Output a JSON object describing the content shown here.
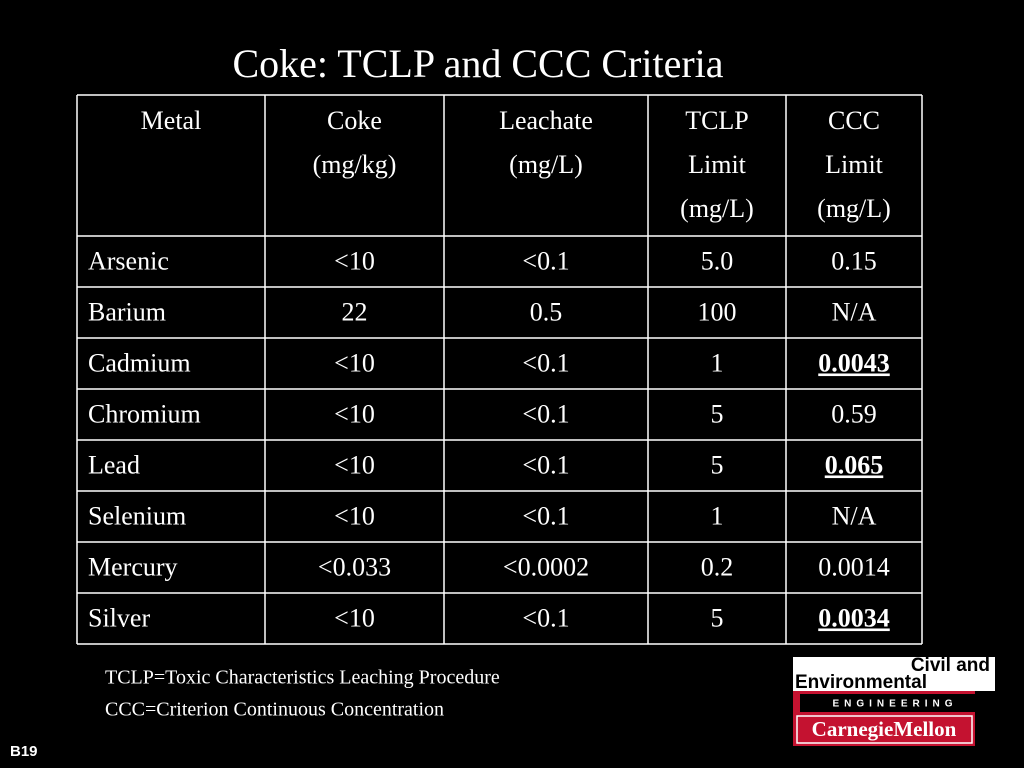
{
  "title": "Coke: TCLP and CCC Criteria",
  "table": {
    "header": [
      [
        "Metal"
      ],
      [
        "Coke",
        "(mg/kg)"
      ],
      [
        "Leachate",
        "(mg/L)"
      ],
      [
        "TCLP",
        "Limit",
        "(mg/L)"
      ],
      [
        "CCC",
        "Limit",
        "(mg/L)"
      ]
    ],
    "rows": [
      [
        "Arsenic",
        "<10",
        "<0.1",
        "5.0",
        "0.15"
      ],
      [
        "Barium",
        "22",
        "0.5",
        "100",
        "N/A"
      ],
      [
        "Cadmium",
        "<10",
        "<0.1",
        "1",
        {
          "text": "0.0043",
          "emphasis": true
        }
      ],
      [
        "Chromium",
        "<10",
        "<0.1",
        "5",
        "0.59"
      ],
      [
        "Lead",
        "<10",
        "<0.1",
        "5",
        {
          "text": "0.065",
          "emphasis": true
        }
      ],
      [
        "Selenium",
        "<10",
        "<0.1",
        "1",
        "N/A"
      ],
      [
        "Mercury",
        "<0.033",
        "<0.0002",
        "0.2",
        "0.0014"
      ],
      [
        "Silver",
        "<10",
        "<0.1",
        "5",
        {
          "text": "0.0034",
          "emphasis": true
        }
      ]
    ]
  },
  "notes": [
    "TCLP=Toxic Characteristics Leaching Procedure",
    "CCC=Criterion Continuous Concentration"
  ],
  "logo": {
    "line1": "Civil and",
    "line2": "Environmental",
    "line3": "ENGINEERING",
    "line4": "CarnegieMellon"
  },
  "slide_number": "B19"
}
